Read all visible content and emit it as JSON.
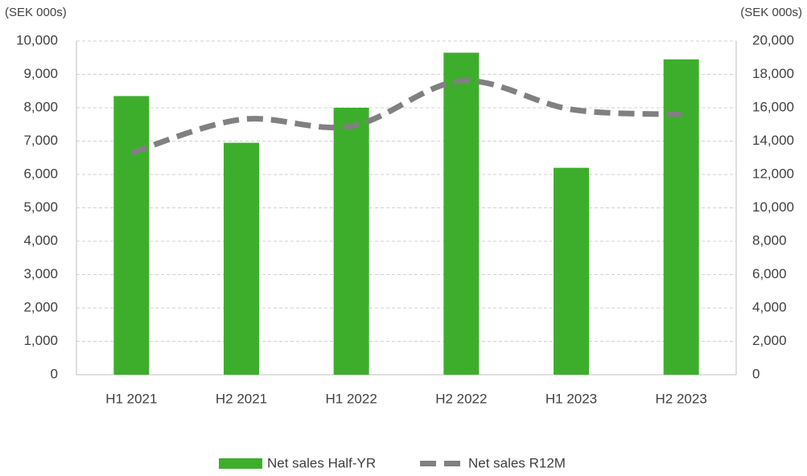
{
  "chart_data": {
    "type": "bar",
    "ylabel": "(SEK 000s)",
    "y2label": "(SEK 000s)",
    "categories": [
      "H1 2021",
      "H2 2021",
      "H1 2022",
      "H2 2022",
      "H1 2023",
      "H2 2023"
    ],
    "series": [
      {
        "name": "Net sales Half-YR",
        "type": "bar",
        "color": "#3dae2b",
        "values": [
          8350,
          6950,
          8000,
          9650,
          6200,
          9450
        ]
      },
      {
        "name": "Net sales R12M",
        "type": "line",
        "axis": "y2",
        "color": "#808080",
        "dashed": true,
        "values": [
          13300,
          15300,
          14900,
          17600,
          15900,
          15600
        ]
      }
    ],
    "ylim": [
      0,
      10000
    ],
    "yticks": [
      0,
      {
        "value": 1000,
        "label": "1,000"
      },
      {
        "value": 2000,
        "label": "2,000"
      },
      {
        "value": 3000,
        "label": "3,000"
      },
      {
        "value": 4000,
        "label": "4,000"
      },
      {
        "value": 5000,
        "label": "5,000"
      },
      {
        "value": 6000,
        "label": "6,000"
      },
      {
        "value": 7000,
        "label": "7,000"
      },
      {
        "value": 8000,
        "label": "8,000"
      },
      {
        "value": 9000,
        "label": "9,000"
      },
      {
        "value": 10000,
        "label": "10,000"
      }
    ],
    "y2lim": [
      0,
      20000
    ],
    "y2ticks": [
      0,
      {
        "value": 2000,
        "label": "2,000"
      },
      {
        "value": 4000,
        "label": "4,000"
      },
      {
        "value": 6000,
        "label": "6,000"
      },
      {
        "value": 8000,
        "label": "8,000"
      },
      {
        "value": 10000,
        "label": "10,000"
      },
      {
        "value": 12000,
        "label": "12,000"
      },
      {
        "value": 14000,
        "label": "14,000"
      },
      {
        "value": 16000,
        "label": "16,000"
      },
      {
        "value": 18000,
        "label": "18,000"
      },
      {
        "value": 20000,
        "label": "20,000"
      }
    ],
    "grid": true,
    "legend": "bottom"
  }
}
